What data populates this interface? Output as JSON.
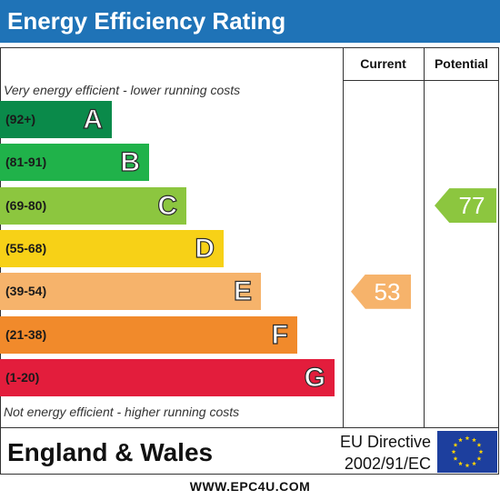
{
  "header": {
    "title": "Energy Efficiency Rating"
  },
  "columns": {
    "current": "Current",
    "potential": "Potential"
  },
  "captions": {
    "top": "Very energy efficient - lower running costs",
    "bottom": "Not energy efficient - higher running costs"
  },
  "chart_data": {
    "type": "bar",
    "title": "Energy Efficiency Rating",
    "bands": [
      {
        "letter": "A",
        "range": "(92+)",
        "color": "#0a8a4a"
      },
      {
        "letter": "B",
        "range": "(81-91)",
        "color": "#20b24a"
      },
      {
        "letter": "C",
        "range": "(69-80)",
        "color": "#8cc63f"
      },
      {
        "letter": "D",
        "range": "(55-68)",
        "color": "#f7d117"
      },
      {
        "letter": "E",
        "range": "(39-54)",
        "color": "#f6b36b"
      },
      {
        "letter": "F",
        "range": "(21-38)",
        "color": "#f18a2b"
      },
      {
        "letter": "G",
        "range": "(1-20)",
        "color": "#e31d3c"
      }
    ],
    "current": {
      "value": 53,
      "band": "E",
      "color": "#f6b36b"
    },
    "potential": {
      "value": 77,
      "band": "C",
      "color": "#8cc63f"
    }
  },
  "footer": {
    "region": "England & Wales",
    "directive_line1": "EU Directive",
    "directive_line2": "2002/91/EC",
    "website": "WWW.EPC4U.COM"
  }
}
